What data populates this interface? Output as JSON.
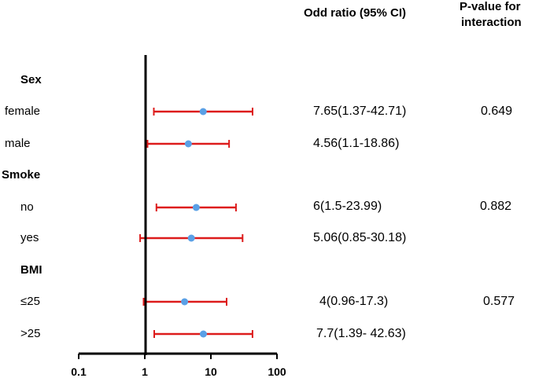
{
  "chart_data": {
    "type": "forest",
    "title": "",
    "x_scale": "log",
    "xlim": [
      0.1,
      100
    ],
    "x_ticks": [
      "0.1",
      "1",
      "10",
      "100"
    ],
    "x_tick_values": [
      0.1,
      1,
      10,
      100
    ],
    "reference_line": 1,
    "headers": {
      "odds_ratio": "Odd ratio (95% CI)",
      "p_value_line1": "P-value for",
      "p_value_line2": "interaction"
    },
    "groups": [
      {
        "name": "Sex",
        "rows": [
          {
            "label": "female",
            "or": 7.65,
            "lo": 1.37,
            "hi": 42.71,
            "text": "7.65(1.37-42.71)"
          },
          {
            "label": "male",
            "or": 4.56,
            "lo": 1.1,
            "hi": 18.86,
            "text": "4.56(1.1-18.86)"
          }
        ],
        "p_value": "0.649"
      },
      {
        "name": "Smoke",
        "rows": [
          {
            "label": "no",
            "or": 6,
            "lo": 1.5,
            "hi": 23.99,
            "text": "6(1.5-23.99)"
          },
          {
            "label": "yes",
            "or": 5.06,
            "lo": 0.85,
            "hi": 30.18,
            "text": "5.06(0.85-30.18)"
          }
        ],
        "p_value": "0.882"
      },
      {
        "name": "BMI",
        "rows": [
          {
            "label": "≤25",
            "or": 4,
            "lo": 0.96,
            "hi": 17.3,
            "text": "4(0.96-17.3)"
          },
          {
            "label": ">25",
            "or": 7.7,
            "lo": 1.39,
            "hi": 42.63,
            "text": "7.7(1.39- 42.63)"
          }
        ],
        "p_value": "0.577"
      }
    ],
    "colors": {
      "ci_line": "#dd1c1c",
      "point": "#5aa0e6",
      "axis": "#000000"
    }
  }
}
